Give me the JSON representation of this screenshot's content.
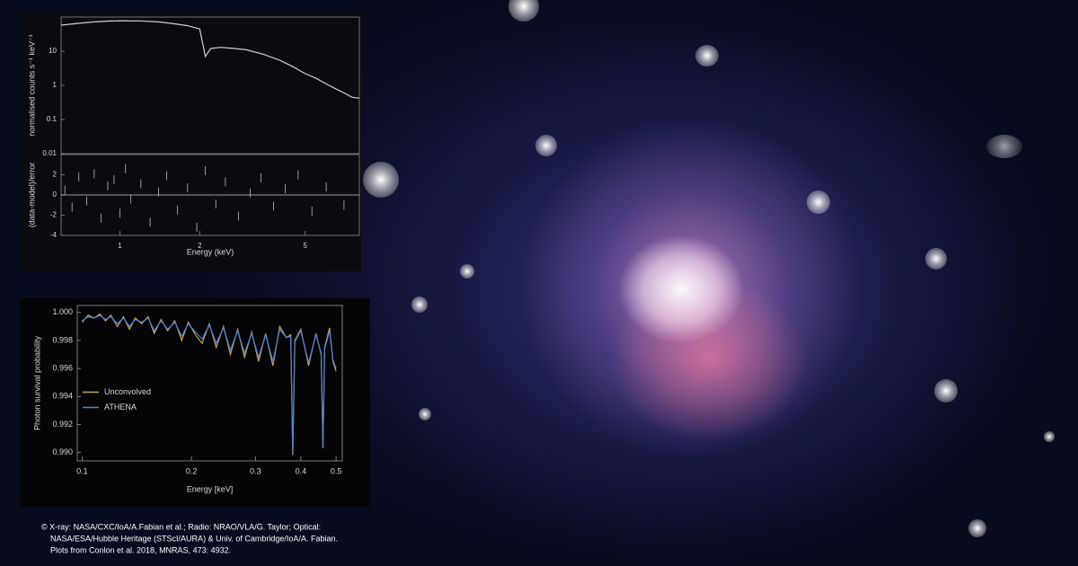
{
  "chart_data": [
    {
      "type": "line",
      "y_label": "normalised counts s⁻¹ keV⁻¹",
      "yscale": "log",
      "xscale": "log",
      "xlim": [
        0.6,
        8
      ],
      "ylim": [
        0.01,
        100
      ],
      "yticks": [
        0.01,
        0.1,
        1,
        10
      ],
      "color": "#d0d0d0",
      "x": [
        0.6,
        0.7,
        0.8,
        0.9,
        1,
        1.2,
        1.4,
        1.6,
        1.8,
        2.0,
        2.1,
        2.2,
        2.4,
        2.7,
        3,
        3.5,
        4,
        4.5,
        5,
        5.5,
        6,
        6.5,
        7,
        7.5,
        8
      ],
      "values": [
        58,
        66,
        72,
        76,
        78,
        77,
        72,
        64,
        56,
        45,
        7,
        12,
        13,
        12,
        11,
        8,
        5.5,
        3.5,
        2.2,
        1.6,
        1.1,
        0.8,
        0.6,
        0.45,
        0.42
      ]
    },
    {
      "type": "scatter",
      "x_label": "Energy (keV)",
      "y_label": "(data-model)/error",
      "xscale": "log",
      "xlim": [
        0.6,
        8
      ],
      "ylim": [
        -4,
        4
      ],
      "xticks": [
        1,
        2,
        5
      ],
      "yticks": [
        -4,
        -2,
        0,
        2
      ],
      "color": "#bdbdbd",
      "x": [
        0.62,
        0.66,
        0.7,
        0.75,
        0.8,
        0.85,
        0.9,
        0.95,
        1.0,
        1.05,
        1.1,
        1.2,
        1.3,
        1.4,
        1.5,
        1.65,
        1.8,
        1.95,
        2.1,
        2.3,
        2.5,
        2.8,
        3.1,
        3.4,
        3.8,
        4.2,
        4.7,
        5.3,
        6,
        7
      ],
      "values": [
        0.5,
        -1.2,
        1.8,
        -0.6,
        2.1,
        -2.3,
        0.9,
        1.5,
        -1.8,
        2.6,
        -0.4,
        1.1,
        -2.7,
        0.3,
        1.9,
        -1.5,
        0.7,
        -3.2,
        2.4,
        -0.9,
        1.3,
        -2.1,
        0.2,
        1.7,
        -1.1,
        0.6,
        2.0,
        -1.6,
        0.8,
        -1.0
      ]
    },
    {
      "type": "line",
      "x_label": "Energy [keV]",
      "y_label": "Photon survival probability",
      "xscale": "log",
      "xlim": [
        0.097,
        0.52
      ],
      "ylim": [
        0.9894,
        1.0005
      ],
      "xticks": [
        0.1,
        0.2,
        0.3,
        0.4,
        0.5
      ],
      "yticks": [
        {
          "value": 0.99,
          "label": "0.990"
        },
        {
          "value": 0.992,
          "label": "0.992"
        },
        {
          "value": 0.994,
          "label": "0.994"
        },
        {
          "value": 0.996,
          "label": "0.996"
        },
        {
          "value": 0.998,
          "label": "0.998"
        },
        {
          "value": 1,
          "label": "1.000"
        }
      ],
      "legend": "center-left",
      "x": [
        0.1,
        0.104,
        0.108,
        0.112,
        0.116,
        0.12,
        0.125,
        0.13,
        0.135,
        0.14,
        0.146,
        0.152,
        0.158,
        0.165,
        0.172,
        0.18,
        0.188,
        0.196,
        0.205,
        0.214,
        0.224,
        0.234,
        0.245,
        0.256,
        0.268,
        0.28,
        0.293,
        0.306,
        0.32,
        0.335,
        0.35,
        0.365,
        0.375,
        0.38,
        0.385,
        0.4,
        0.42,
        0.44,
        0.455,
        0.46,
        0.465,
        0.48,
        0.49,
        0.5
      ],
      "series": [
        {
          "name": "Unconvolved",
          "color": "#c9a24e",
          "values": [
            0.9993,
            0.9998,
            0.9996,
            0.9999,
            0.9994,
            0.9998,
            0.999,
            0.9997,
            0.9988,
            0.9996,
            0.9992,
            0.9997,
            0.9985,
            0.9995,
            0.9987,
            0.9994,
            0.998,
            0.9993,
            0.9984,
            0.9978,
            0.9992,
            0.9975,
            0.999,
            0.997,
            0.9988,
            0.9968,
            0.9986,
            0.9965,
            0.9985,
            0.9962,
            0.999,
            0.9982,
            0.9984,
            0.9898,
            0.998,
            0.9988,
            0.9962,
            0.9985,
            0.997,
            0.9903,
            0.9975,
            0.9989,
            0.9965,
            0.9958
          ]
        },
        {
          "name": "ATHENA",
          "color": "#4f82d6",
          "values": [
            0.9994,
            0.9997,
            0.9996,
            0.9998,
            0.9995,
            0.9997,
            0.9992,
            0.9996,
            0.999,
            0.9995,
            0.9993,
            0.9996,
            0.9987,
            0.9994,
            0.9988,
            0.9993,
            0.9983,
            0.9992,
            0.9986,
            0.9981,
            0.9991,
            0.9978,
            0.9989,
            0.9973,
            0.9987,
            0.9971,
            0.9985,
            0.9968,
            0.9984,
            0.9965,
            0.9988,
            0.9982,
            0.9983,
            0.99,
            0.9979,
            0.9987,
            0.9964,
            0.9984,
            0.9971,
            0.9905,
            0.9974,
            0.9987,
            0.9966,
            0.996
          ]
        }
      ]
    }
  ],
  "credit": [
    "© X-ray: NASA/CXC/IoA/A.Fabian et al.; Radio: NRAO/VLA/G. Taylor; Optical:",
    "NASA/ESA/Hubble Heritage (STScI/AURA) & Univ. of Cambridge/IoA/A. Fabian.",
    "Plots from Conlon et al. 2018, MNRAS, 473: 4932."
  ]
}
